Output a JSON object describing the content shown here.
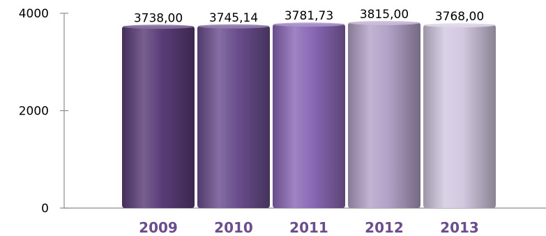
{
  "chart_data": {
    "type": "bar",
    "title": "",
    "xlabel": "",
    "ylabel": "",
    "categories": [
      "2009",
      "2010",
      "2011",
      "2012",
      "2013"
    ],
    "values": [
      3738.0,
      3745.14,
      3781.73,
      3815.0,
      3768.0
    ],
    "data_labels": [
      "3738,00",
      "3745,14",
      "3781,73",
      "3815,00",
      "3768,00"
    ],
    "ylim": [
      0,
      4000
    ],
    "yticks": [
      0,
      2000,
      4000
    ],
    "ytick_labels": [
      "0",
      "2000",
      "4000"
    ],
    "grid": false,
    "legend": "none",
    "bar_colors": [
      "#5a3c78",
      "#6a4e8e",
      "#8a68b6",
      "#b3a2c8",
      "#d2c8e0"
    ],
    "axis_color": "#8c8c8c",
    "xtick_label_color": "#6a4d8e"
  }
}
